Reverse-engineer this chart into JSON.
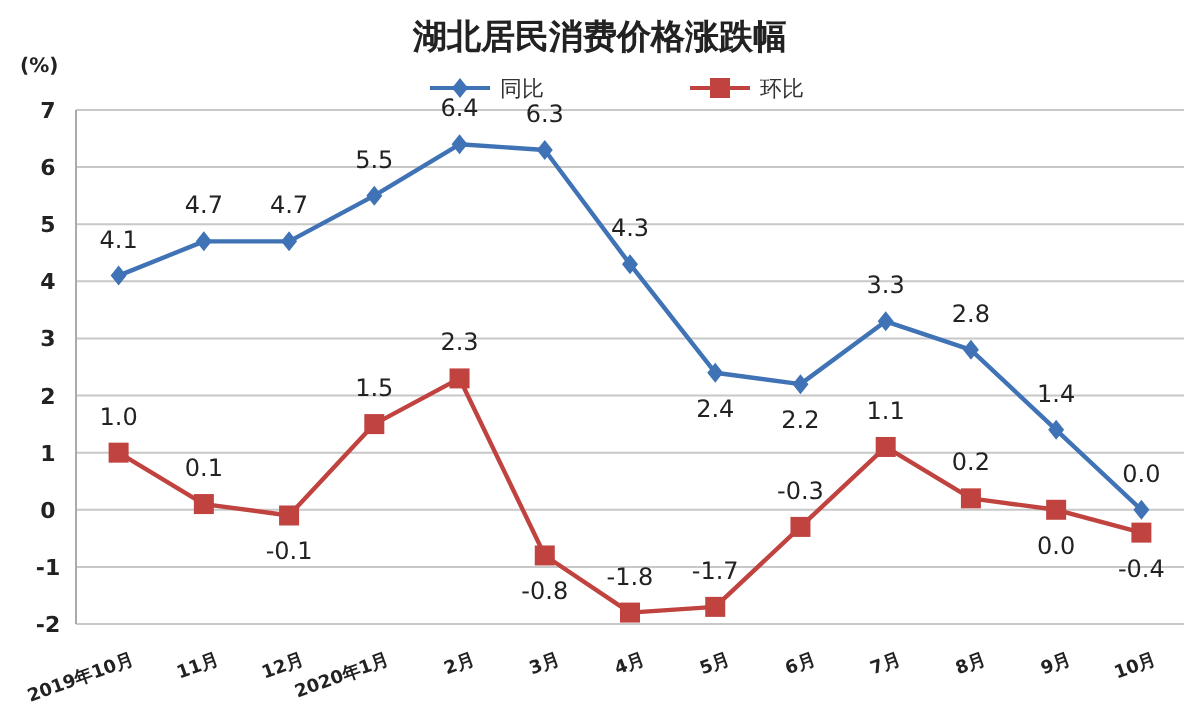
{
  "chart_data": {
    "type": "line",
    "title": "湖北居民消费价格涨跌幅",
    "ylabel": "(%)",
    "categories": [
      "2019年10月",
      "11月",
      "12月",
      "2020年1月",
      "2月",
      "3月",
      "4月",
      "5月",
      "6月",
      "7月",
      "8月",
      "9月",
      "10月"
    ],
    "series": [
      {
        "name": "同比",
        "color": "#3f73b5",
        "marker": "diamond",
        "values": [
          4.1,
          4.7,
          4.7,
          5.5,
          6.4,
          6.3,
          4.3,
          2.4,
          2.2,
          3.3,
          2.8,
          1.4,
          0.0
        ],
        "value_labels": [
          "4.1",
          "4.7",
          "4.7",
          "5.5",
          "6.4",
          "6.3",
          "4.3",
          "2.4",
          "2.2",
          "3.3",
          "2.8",
          "1.4",
          "0.0"
        ]
      },
      {
        "name": "环比",
        "color": "#c0433f",
        "marker": "square",
        "values": [
          1.0,
          0.1,
          -0.1,
          1.5,
          2.3,
          -0.8,
          -1.8,
          -1.7,
          -0.3,
          1.1,
          0.2,
          0.0,
          -0.4
        ],
        "value_labels": [
          "1.0",
          "0.1",
          "-0.1",
          "1.5",
          "2.3",
          "-0.8",
          "-1.8",
          "-1.7",
          "-0.3",
          "1.1",
          "0.2",
          "0.0",
          "-0.4"
        ]
      }
    ],
    "ylim": [
      -2,
      7
    ],
    "yticks": [
      -2,
      -1,
      0,
      1,
      2,
      3,
      4,
      5,
      6,
      7
    ],
    "grid": "y",
    "legend": "top"
  }
}
